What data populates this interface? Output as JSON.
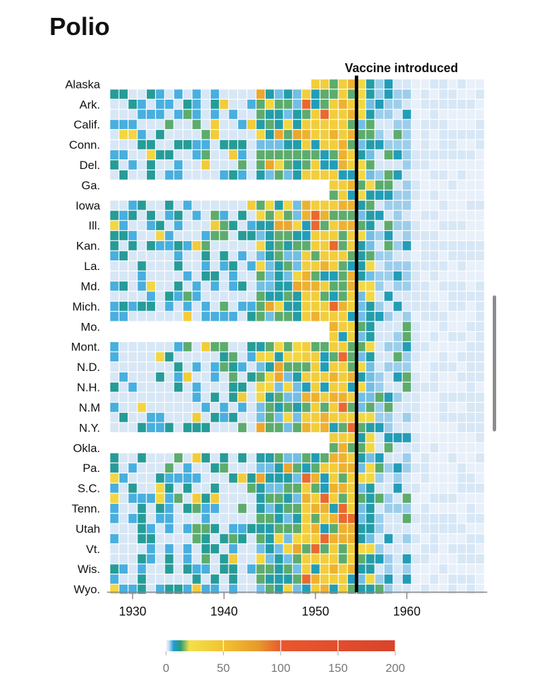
{
  "title": "Polio",
  "scrollbar": "scrollbar",
  "chart_data": {
    "type": "heatmap",
    "title": "Polio",
    "states_labeled": [
      "Alaska",
      "Ark.",
      "Calif.",
      "Conn.",
      "Del.",
      "Ga.",
      "Iowa",
      "Ill.",
      "Kan.",
      "La.",
      "Md.",
      "Mich.",
      "Mo.",
      "Mont.",
      "N.D.",
      "N.H.",
      "N.M",
      "N.Y.",
      "Okla.",
      "Pa.",
      "S.C.",
      "Tenn.",
      "Utah",
      "Vt.",
      "Wis.",
      "Wyo."
    ],
    "row_count": 51,
    "year_range": [
      1928,
      1968
    ],
    "x_ticks": [
      1930,
      1940,
      1950,
      1960
    ],
    "annotation": {
      "year": 1955,
      "label": "Vaccine introduced"
    },
    "legend": {
      "ticks": [
        0,
        50,
        100,
        150,
        200
      ],
      "range": [
        0,
        200
      ]
    },
    "color_stops": [
      {
        "v": 0,
        "c": "#e8f0fa"
      },
      {
        "v": 2,
        "c": "#c6ddf2"
      },
      {
        "v": 6,
        "c": "#1e9fd8"
      },
      {
        "v": 12,
        "c": "#2a9a78"
      },
      {
        "v": 20,
        "c": "#f4e04a"
      },
      {
        "v": 50,
        "c": "#f1c232"
      },
      {
        "v": 80,
        "c": "#e89a2c"
      },
      {
        "v": 100,
        "c": "#e9582f"
      },
      {
        "v": 200,
        "c": "#d8432b"
      }
    ]
  }
}
